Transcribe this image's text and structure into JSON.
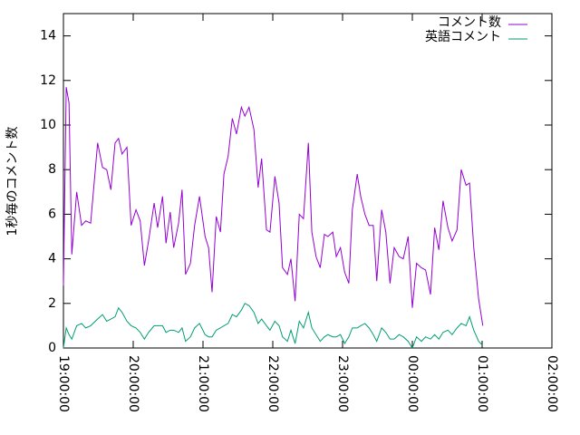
{
  "chart_data": {
    "type": "line",
    "ylabel": "1秒毎のコメント数",
    "x": [
      19.0,
      19.04,
      19.08,
      19.12,
      19.19,
      19.26,
      19.32,
      19.39,
      19.49,
      19.56,
      19.62,
      19.68,
      19.74,
      19.79,
      19.84,
      19.91,
      19.97,
      20.04,
      20.1,
      20.16,
      20.22,
      20.3,
      20.35,
      20.42,
      20.47,
      20.53,
      20.58,
      20.65,
      20.7,
      20.75,
      20.82,
      20.88,
      20.95,
      21.03,
      21.08,
      21.13,
      21.19,
      21.25,
      21.3,
      21.36,
      21.42,
      21.48,
      21.55,
      21.6,
      21.66,
      21.73,
      21.79,
      21.84,
      21.91,
      21.96,
      22.03,
      22.09,
      22.14,
      22.21,
      22.26,
      22.32,
      22.38,
      22.44,
      22.51,
      22.56,
      22.62,
      22.68,
      22.74,
      22.79,
      22.86,
      22.91,
      22.97,
      23.03,
      23.09,
      23.14,
      23.21,
      23.26,
      23.32,
      23.38,
      23.44,
      23.49,
      23.56,
      23.62,
      23.68,
      23.74,
      23.81,
      23.87,
      23.94,
      24.0,
      24.06,
      24.13,
      24.19,
      24.26,
      24.32,
      24.38,
      24.44,
      24.51,
      24.57,
      24.64,
      24.7,
      24.77,
      24.82,
      24.88,
      24.95,
      25.01
    ],
    "series": [
      {
        "name": "コメント数",
        "color": "#9400d3",
        "values": [
          2.8,
          11.7,
          11,
          4.2,
          7,
          5.5,
          5.7,
          5.6,
          9.2,
          8.1,
          8,
          7.1,
          9.2,
          9.4,
          8.7,
          9,
          5.5,
          6.2,
          5.7,
          3.7,
          4.8,
          6.5,
          5.4,
          6.8,
          4.7,
          6.1,
          4.5,
          5.6,
          7.1,
          3.3,
          3.8,
          5.5,
          6.8,
          5,
          4.5,
          2.5,
          5.9,
          5.2,
          7.8,
          8.6,
          10.3,
          9.6,
          10.8,
          10.4,
          10.8,
          9.8,
          7.2,
          8.5,
          5.3,
          5.2,
          7.7,
          6.5,
          3.6,
          3.3,
          4,
          2.1,
          6,
          5.8,
          9.2,
          5.2,
          4.1,
          3.6,
          5.1,
          5,
          5.2,
          4.1,
          4.5,
          3.4,
          2.9,
          6.2,
          7.8,
          6.8,
          6,
          5.5,
          5.5,
          3,
          6.2,
          5.2,
          2.9,
          4.5,
          4.1,
          4,
          5,
          1.8,
          3.8,
          3.6,
          3.5,
          2.4,
          5.4,
          4.4,
          6.6,
          5.4,
          4.8,
          5.3,
          8,
          7.3,
          7.4,
          4.5,
          2.2,
          1
        ]
      },
      {
        "name": "英語コメント",
        "color": "#009e73",
        "values": [
          0,
          0.9,
          0.6,
          0.4,
          1,
          1.1,
          0.9,
          1,
          1.3,
          1.5,
          1.2,
          1.3,
          1.4,
          1.8,
          1.6,
          1.2,
          1,
          0.9,
          0.7,
          0.4,
          0.7,
          1,
          1,
          1,
          0.7,
          0.8,
          0.8,
          0.7,
          0.9,
          0.3,
          0.5,
          0.9,
          1.1,
          0.6,
          0.5,
          0.5,
          0.8,
          0.9,
          1,
          1.1,
          1.5,
          1.4,
          1.7,
          2,
          1.9,
          1.6,
          1.1,
          1.3,
          1,
          0.8,
          1.2,
          1,
          0.5,
          0.3,
          0.8,
          0.2,
          1.2,
          0.9,
          1.6,
          0.9,
          0.6,
          0.3,
          0.5,
          0.6,
          0.5,
          0.5,
          0.6,
          0.2,
          0.5,
          0.9,
          0.9,
          1,
          1.1,
          0.9,
          0.6,
          0.3,
          0.9,
          0.7,
          0.4,
          0.4,
          0.6,
          0.5,
          0.3,
          0,
          0.5,
          0.3,
          0.5,
          0.4,
          0.6,
          0.4,
          0.7,
          0.8,
          0.6,
          0.9,
          1.1,
          1,
          1.4,
          0.8,
          0.3,
          0.1
        ]
      }
    ],
    "xlim": [
      19,
      26
    ],
    "xticks": [
      {
        "value": 19,
        "label": "19:00:00"
      },
      {
        "value": 20,
        "label": "20:00:00"
      },
      {
        "value": 21,
        "label": "21:00:00"
      },
      {
        "value": 22,
        "label": "22:00:00"
      },
      {
        "value": 23,
        "label": "23:00:00"
      },
      {
        "value": 24,
        "label": "00:00:00"
      },
      {
        "value": 25,
        "label": "01:00:00"
      },
      {
        "value": 26,
        "label": "02:00:00"
      }
    ],
    "ylim": [
      0,
      15
    ],
    "yticks": [
      0,
      2,
      4,
      6,
      8,
      10,
      12,
      14
    ],
    "legend": "top-right"
  }
}
